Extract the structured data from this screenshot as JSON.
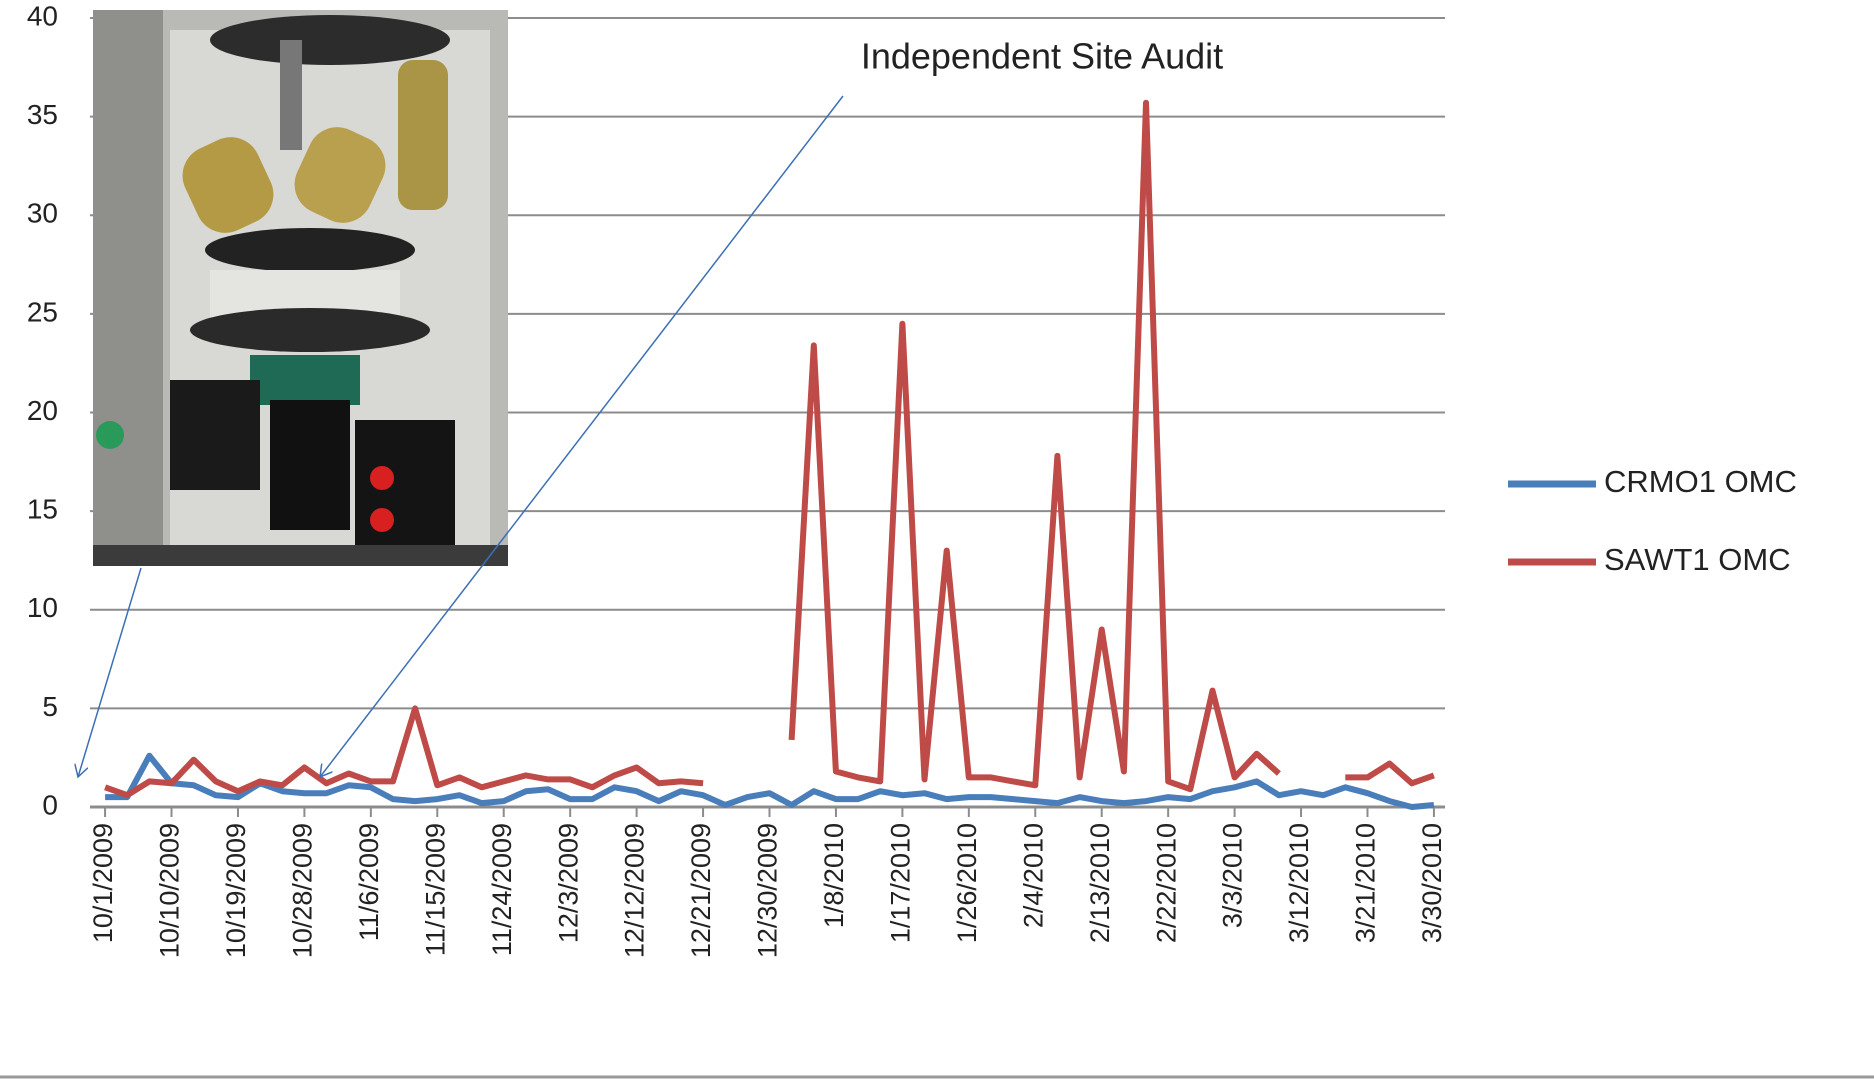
{
  "chart_data": {
    "type": "line",
    "annotation": "Independent Site Audit",
    "categories": [
      "10/1/2009",
      null,
      null,
      "10/10/2009",
      null,
      null,
      "10/19/2009",
      null,
      null,
      "10/28/2009",
      null,
      null,
      "11/6/2009",
      null,
      null,
      "11/15/2009",
      null,
      null,
      "11/24/2009",
      null,
      null,
      "12/3/2009",
      null,
      null,
      "12/12/2009",
      null,
      null,
      "12/21/2009",
      null,
      null,
      "12/30/2009",
      null,
      null,
      "1/8/2010",
      null,
      null,
      "1/17/2010",
      null,
      null,
      "1/26/2010",
      null,
      null,
      "2/4/2010",
      null,
      null,
      "2/13/2010",
      null,
      null,
      "2/22/2010",
      null,
      null,
      "3/3/2010",
      null,
      null,
      "3/12/2010",
      null,
      null,
      "3/21/2010",
      null,
      null,
      "3/30/2010"
    ],
    "series": [
      {
        "name": "CRMO1 OMC",
        "color": "#4a7ebb",
        "values": [
          0.5,
          0.5,
          2.6,
          1.2,
          1.1,
          0.6,
          0.5,
          1.2,
          0.8,
          0.7,
          0.7,
          1.1,
          1.0,
          0.4,
          0.3,
          0.4,
          0.6,
          0.2,
          0.3,
          0.8,
          0.9,
          0.4,
          0.4,
          1.0,
          0.8,
          0.3,
          0.8,
          0.6,
          0.1,
          0.5,
          0.7,
          0.1,
          0.8,
          0.4,
          0.4,
          0.8,
          0.6,
          0.7,
          0.4,
          0.5,
          0.5,
          0.4,
          0.3,
          0.2,
          0.5,
          0.3,
          0.2,
          0.3,
          0.5,
          0.4,
          0.8,
          1.0,
          1.3,
          0.6,
          0.8,
          0.6,
          1.0,
          0.7,
          0.3,
          0.0,
          0.1
        ]
      },
      {
        "name": "SAWT1 OMC",
        "color": "#be4b48",
        "values": [
          1.0,
          0.6,
          1.3,
          1.2,
          2.4,
          1.3,
          0.8,
          1.3,
          1.1,
          2.0,
          1.2,
          1.7,
          1.3,
          1.3,
          5.0,
          1.1,
          1.5,
          1.0,
          1.3,
          1.6,
          1.4,
          1.4,
          1.0,
          1.6,
          2.0,
          1.2,
          1.3,
          1.2,
          null,
          null,
          null,
          3.4,
          23.4,
          1.8,
          1.5,
          1.3,
          24.5,
          1.4,
          13.0,
          1.5,
          1.5,
          1.3,
          1.1,
          17.8,
          1.5,
          9.0,
          1.8,
          35.7,
          1.3,
          0.9,
          5.9,
          1.5,
          2.7,
          1.7,
          null,
          null,
          1.5,
          1.5,
          2.2,
          1.2,
          1.6
        ]
      }
    ],
    "ylim": [
      0,
      40
    ],
    "yticks": [
      0,
      5,
      10,
      15,
      20,
      25,
      30,
      35,
      40
    ],
    "grid": true
  }
}
